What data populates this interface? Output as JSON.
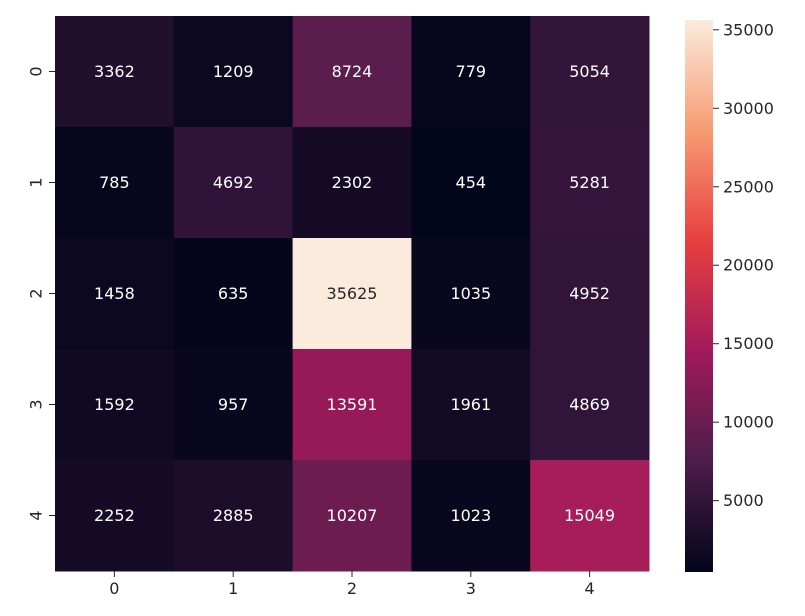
{
  "chart_data": {
    "type": "heatmap",
    "x_tick_labels": [
      "0",
      "1",
      "2",
      "3",
      "4"
    ],
    "y_tick_labels": [
      "0",
      "1",
      "2",
      "3",
      "4"
    ],
    "values": [
      [
        3362,
        1209,
        8724,
        779,
        5054
      ],
      [
        785,
        4692,
        2302,
        454,
        5281
      ],
      [
        1458,
        635,
        35625,
        1035,
        4952
      ],
      [
        1592,
        957,
        13591,
        1961,
        4869
      ],
      [
        2252,
        2885,
        10207,
        1023,
        15049
      ]
    ],
    "colorbar": {
      "min": 454,
      "max": 35625,
      "ticks": [
        5000,
        10000,
        15000,
        20000,
        25000,
        30000,
        35000
      ],
      "tick_labels": [
        "5000",
        "10000",
        "15000",
        "20000",
        "25000",
        "30000",
        "35000"
      ]
    },
    "colormap": "rocket",
    "colormap_stops": [
      "#03051a",
      "#4c1d4b",
      "#a11a5b",
      "#e83f3f",
      "#f69c73",
      "#faebdd"
    ],
    "annotation_colors": {
      "light": "#ffffff",
      "dark": "#262626"
    },
    "grid": false,
    "legend": "colorbar-right"
  }
}
